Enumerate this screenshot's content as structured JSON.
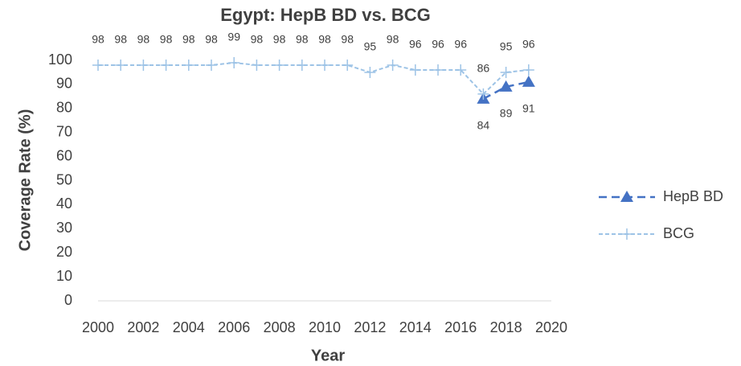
{
  "chart_data": {
    "type": "line",
    "title": "Egypt: HepB BD vs. BCG",
    "x_label": "Year",
    "y_label": "Coverage Rate (%)",
    "x": [
      2000,
      2001,
      2002,
      2003,
      2004,
      2005,
      2006,
      2007,
      2008,
      2009,
      2010,
      2011,
      2012,
      2013,
      2014,
      2015,
      2016,
      2017,
      2018,
      2019
    ],
    "series": [
      {
        "name": "HepB BD",
        "color": "#4472c4",
        "dash": true,
        "marker": "triangle",
        "values": [
          null,
          null,
          null,
          null,
          null,
          null,
          null,
          null,
          null,
          null,
          null,
          null,
          null,
          null,
          null,
          null,
          null,
          84,
          89,
          91
        ]
      },
      {
        "name": "BCG",
        "color": "#9dc3e6",
        "dash": true,
        "marker": "plus",
        "values": [
          98,
          98,
          98,
          98,
          98,
          98,
          99,
          98,
          98,
          98,
          98,
          98,
          95,
          98,
          96,
          96,
          96,
          86,
          95,
          96
        ]
      }
    ],
    "xlim": [
      2000,
      2020
    ],
    "xticks": [
      2000,
      2002,
      2004,
      2006,
      2008,
      2010,
      2012,
      2014,
      2016,
      2018,
      2020
    ],
    "ylim": [
      0,
      100
    ],
    "yticks": [
      0,
      10,
      20,
      30,
      40,
      50,
      60,
      70,
      80,
      90,
      100
    ],
    "grid": false,
    "legend": "right"
  }
}
